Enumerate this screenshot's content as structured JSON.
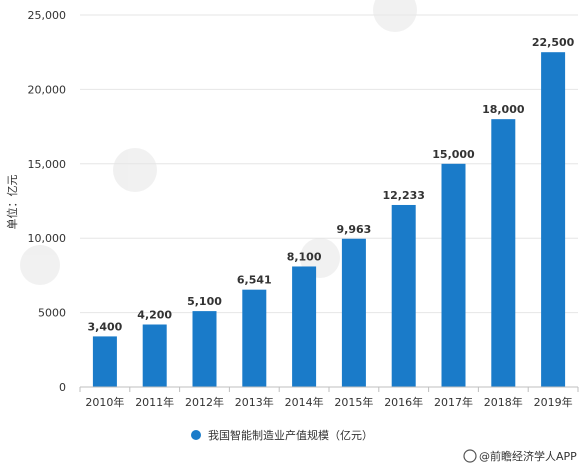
{
  "chart_data": {
    "type": "bar",
    "categories": [
      "2010年",
      "2011年",
      "2012年",
      "2013年",
      "2014年",
      "2015年",
      "2016年",
      "2017年",
      "2018年",
      "2019年"
    ],
    "values": [
      3400,
      4200,
      5100,
      6541,
      8100,
      9963,
      12233,
      15000,
      18000,
      22500
    ],
    "value_labels": [
      "3,400",
      "4,200",
      "5,100",
      "6,541",
      "8,100",
      "9,963",
      "12,233",
      "15,000",
      "18,000",
      "22,500"
    ],
    "series": [
      {
        "name": "我国智能制造业产值规模（亿元）",
        "values": [
          3400,
          4200,
          5100,
          6541,
          8100,
          9963,
          12233,
          15000,
          18000,
          22500
        ]
      }
    ],
    "ylabel": "单位：亿元",
    "ylim": [
      0,
      25000
    ],
    "yticks": [
      0,
      5000,
      10000,
      15000,
      20000,
      25000
    ],
    "ytick_labels": [
      "0",
      "5000",
      "10,000",
      "15,000",
      "20,000",
      "25,000"
    ],
    "grid": true,
    "legend_position": "bottom",
    "bar_color": "#1a7bc9"
  },
  "source": {
    "text": "@前瞻经济学人APP"
  }
}
